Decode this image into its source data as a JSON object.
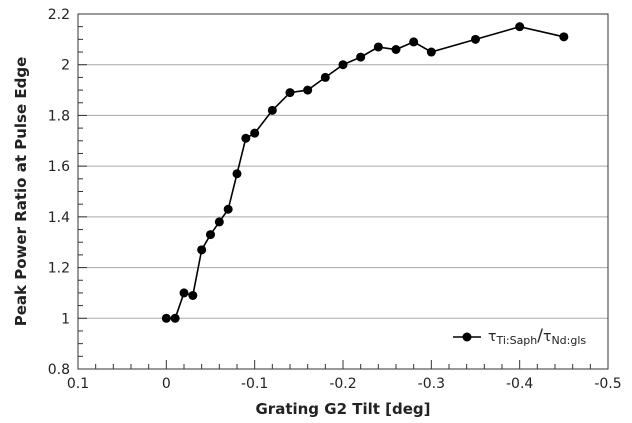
{
  "chart_data": {
    "type": "scatter",
    "xlabel": "Grating G2 Tilt [deg]",
    "ylabel": "Peak Power Ratio at Pulse Edge",
    "xlim": [
      0.1,
      -0.5
    ],
    "ylim": [
      0.8,
      2.2
    ],
    "x_reversed": true,
    "grid": "horizontal",
    "legend_position": "bottom-right",
    "x_ticks": [
      "0.1",
      "0",
      "-0.1",
      "-0.2",
      "-0.3",
      "-0.4",
      "-0.5"
    ],
    "y_ticks": [
      "0.8",
      "1",
      "1.2",
      "1.4",
      "1.6",
      "1.8",
      "2",
      "2.2"
    ],
    "series": [
      {
        "legend": {
          "numerator_base": "τ",
          "numerator_sub": "Ti:Saph",
          "slash": "/",
          "denominator_base": "τ",
          "denominator_sub": "Nd:gls"
        },
        "color": "#000000",
        "points": [
          {
            "x": 0.0,
            "y": 1.0
          },
          {
            "x": -0.01,
            "y": 1.0
          },
          {
            "x": -0.02,
            "y": 1.1
          },
          {
            "x": -0.03,
            "y": 1.09
          },
          {
            "x": -0.04,
            "y": 1.27
          },
          {
            "x": -0.05,
            "y": 1.33
          },
          {
            "x": -0.06,
            "y": 1.38
          },
          {
            "x": -0.07,
            "y": 1.43
          },
          {
            "x": -0.08,
            "y": 1.57
          },
          {
            "x": -0.09,
            "y": 1.71
          },
          {
            "x": -0.1,
            "y": 1.73
          },
          {
            "x": -0.12,
            "y": 1.82
          },
          {
            "x": -0.14,
            "y": 1.89
          },
          {
            "x": -0.16,
            "y": 1.9
          },
          {
            "x": -0.18,
            "y": 1.95
          },
          {
            "x": -0.2,
            "y": 2.0
          },
          {
            "x": -0.22,
            "y": 2.03
          },
          {
            "x": -0.24,
            "y": 2.07
          },
          {
            "x": -0.26,
            "y": 2.06
          },
          {
            "x": -0.28,
            "y": 2.09
          },
          {
            "x": -0.3,
            "y": 2.05
          },
          {
            "x": -0.35,
            "y": 2.1
          },
          {
            "x": -0.4,
            "y": 2.15
          },
          {
            "x": -0.45,
            "y": 2.11
          }
        ]
      }
    ]
  }
}
